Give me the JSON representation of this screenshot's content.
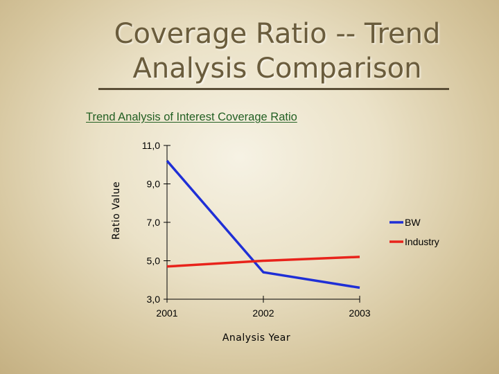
{
  "slide": {
    "title_line1": "Coverage Ratio -- Trend",
    "title_line2": "Analysis Comparison"
  },
  "chart_data": {
    "type": "line",
    "title": "Trend Analysis of Interest Coverage Ratio",
    "xlabel": "Analysis Year",
    "ylabel": "Ratio Value",
    "categories": [
      "2001",
      "2002",
      "2003"
    ],
    "ylim": [
      3.0,
      11.0
    ],
    "yticks": [
      11.0,
      9.0,
      7.0,
      5.0,
      3.0
    ],
    "ytick_labels": [
      "11,0",
      "9,0",
      "7,0",
      "5,0",
      "3,0"
    ],
    "series": [
      {
        "name": "BW",
        "values": [
          10.2,
          4.4,
          3.6
        ],
        "color": "#1f2fd6"
      },
      {
        "name": "Industry",
        "values": [
          4.7,
          5.0,
          5.2
        ],
        "color": "#e8231b"
      }
    ],
    "legend_position": "right",
    "grid": false
  }
}
